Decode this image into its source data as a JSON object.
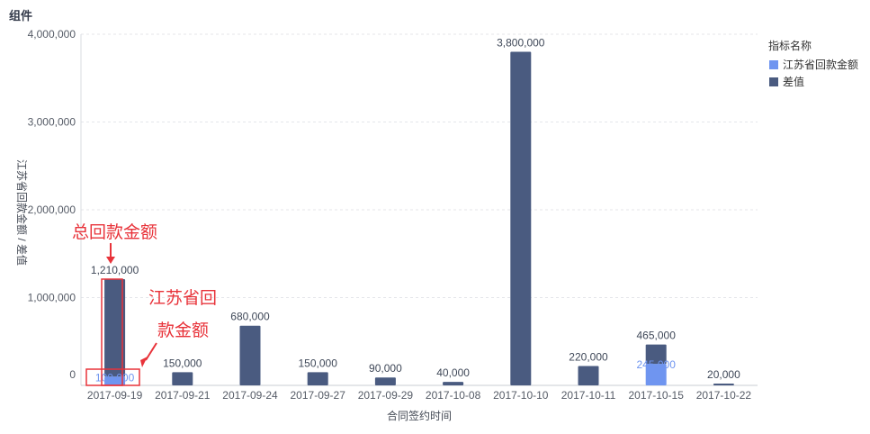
{
  "header": {
    "title": "组件"
  },
  "chart_data": {
    "type": "bar",
    "stacked": true,
    "categories": [
      "2017-09-19",
      "2017-09-21",
      "2017-09-24",
      "2017-09-27",
      "2017-09-29",
      "2017-10-08",
      "2017-10-10",
      "2017-10-11",
      "2017-10-15",
      "2017-10-22"
    ],
    "series": [
      {
        "name": "江苏省回款金额",
        "color": "#6f95f0",
        "values": [
          100000,
          0,
          0,
          0,
          0,
          0,
          0,
          0,
          245000,
          0
        ],
        "labels": [
          "100,000",
          "",
          "",
          "",
          "",
          "",
          "",
          "",
          "245,000",
          ""
        ]
      },
      {
        "name": "差值",
        "color": "#4a5b80",
        "values": [
          1110000,
          150000,
          680000,
          150000,
          90000,
          40000,
          3800000,
          220000,
          220000,
          20000
        ]
      }
    ],
    "total_labels": [
      "1,210,000",
      "150,000",
      "680,000",
      "150,000",
      "90,000",
      "40,000",
      "3,800,000",
      "220,000",
      "465,000",
      "20,000"
    ],
    "xlabel": "合同签约时间",
    "ylabel": "江苏省回款金额 / 差值",
    "ylim": [
      0,
      4000000
    ],
    "yticks": [
      0,
      1000000,
      2000000,
      3000000,
      4000000
    ],
    "ytick_labels": [
      "0",
      "1,000,000",
      "2,000,000",
      "3,000,000",
      "4,000,000"
    ],
    "grid": true,
    "legend": {
      "title": "指标名称",
      "placement": "top-right"
    },
    "annotations": [
      {
        "text": "总回款金额",
        "color": "#e8333a"
      },
      {
        "text": "江苏省回",
        "color": "#e8333a"
      },
      {
        "text": "款金额",
        "color": "#e8333a"
      }
    ]
  }
}
